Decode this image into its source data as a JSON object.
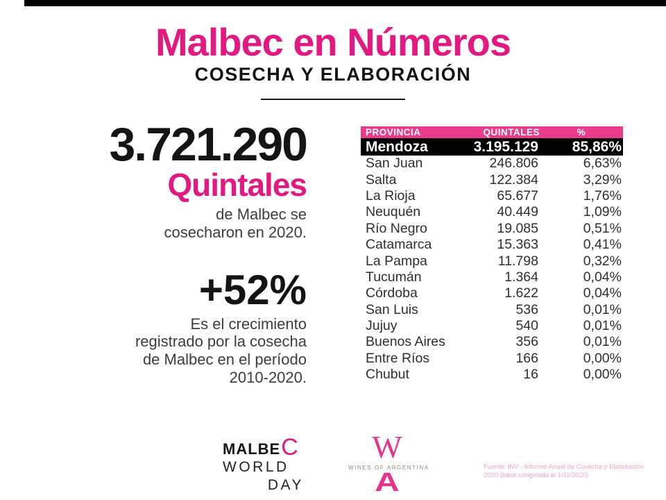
{
  "colors": {
    "brand_pink": "#E11980",
    "table_header_pink": "#E93A8C",
    "highlight_black": "#000000",
    "body_gray": "#3D3D3D",
    "logo_gray": "#8C8C8C",
    "source_pink": "#F0A6CA"
  },
  "header": {
    "title": "Malbec en Números",
    "subtitle": "COSECHA Y ELABORACIÓN"
  },
  "stats": {
    "harvest": {
      "value": "3.721.290",
      "unit": "Quintales",
      "desc_lines": [
        "de Malbec se",
        "cosecharon en 2020."
      ]
    },
    "growth": {
      "value": "+52%",
      "desc_lines": [
        "Es el crecimiento",
        "registrado por la cosecha",
        "de Malbec en el período",
        "2010-2020."
      ]
    }
  },
  "table": {
    "headers": {
      "provincia": "PROVINCIA",
      "quintales": "QUINTALES",
      "pct": "%"
    },
    "highlight_row": {
      "provincia": "Mendoza",
      "quintales": "3.195.129",
      "pct": "85,86%"
    },
    "rows": [
      {
        "provincia": "San Juan",
        "quintales": "246.806",
        "pct": "6,63%"
      },
      {
        "provincia": "Salta",
        "quintales": "122.384",
        "pct": "3,29%"
      },
      {
        "provincia": "La Rioja",
        "quintales": "65.677",
        "pct": "1,76%"
      },
      {
        "provincia": "Neuquén",
        "quintales": "40.449",
        "pct": "1,09%"
      },
      {
        "provincia": "Río Negro",
        "quintales": "19.085",
        "pct": "0,51%"
      },
      {
        "provincia": "Catamarca",
        "quintales": "15.363",
        "pct": "0,41%"
      },
      {
        "provincia": "La Pampa",
        "quintales": "11.798",
        "pct": "0,32%"
      },
      {
        "provincia": "Tucumán",
        "quintales": "1.364",
        "pct": "0,04%"
      },
      {
        "provincia": "Córdoba",
        "quintales": "1.622",
        "pct": "0,04%"
      },
      {
        "provincia": "San Luis",
        "quintales": "536",
        "pct": "0,01%"
      },
      {
        "provincia": "Jujuy",
        "quintales": "540",
        "pct": "0,01%"
      },
      {
        "provincia": "Buenos Aires",
        "quintales": "356",
        "pct": "0,01%"
      },
      {
        "provincia": "Entre Ríos",
        "quintales": "166",
        "pct": "0,00%"
      },
      {
        "provincia": "Chubut",
        "quintales": "16",
        "pct": "0,00%"
      }
    ]
  },
  "footer": {
    "mwd": {
      "malbe": "MALBE",
      "c": "C",
      "world": "WORLD",
      "day": "DAY"
    },
    "wofa": {
      "monogram_w": "W",
      "label": "WINES OF ARGENTINA",
      "monogram_a": "A"
    },
    "source": {
      "line1": "Fuente: INV - Informe Anual de Cosecha y Elaboración",
      "line2": "2020 (base congelada al 1/11/2020)"
    }
  },
  "chart_data": {
    "type": "table",
    "title": "Malbec en Números — Cosecha y Elaboración",
    "columns": [
      "PROVINCIA",
      "QUINTALES",
      "%"
    ],
    "rows": [
      [
        "Mendoza",
        "3.195.129",
        "85,86%"
      ],
      [
        "San Juan",
        "246.806",
        "6,63%"
      ],
      [
        "Salta",
        "122.384",
        "3,29%"
      ],
      [
        "La Rioja",
        "65.677",
        "1,76%"
      ],
      [
        "Neuquén",
        "40.449",
        "1,09%"
      ],
      [
        "Río Negro",
        "19.085",
        "0,51%"
      ],
      [
        "Catamarca",
        "15.363",
        "0,41%"
      ],
      [
        "La Pampa",
        "11.798",
        "0,32%"
      ],
      [
        "Tucumán",
        "1.364",
        "0,04%"
      ],
      [
        "Córdoba",
        "1.622",
        "0,04%"
      ],
      [
        "San Luis",
        "536",
        "0,01%"
      ],
      [
        "Jujuy",
        "540",
        "0,01%"
      ],
      [
        "Buenos Aires",
        "356",
        "0,01%"
      ],
      [
        "Entre Ríos",
        "166",
        "0,00%"
      ],
      [
        "Chubut",
        "16",
        "0,00%"
      ]
    ],
    "key_figures": {
      "total_quintales_malbec_2020": "3.721.290",
      "growth_2010_2020": "+52%"
    },
    "legend_position": "none",
    "grid": false
  }
}
